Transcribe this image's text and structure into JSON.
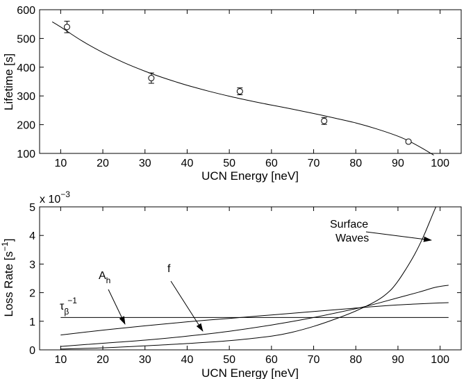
{
  "chart_data": [
    {
      "type": "scatter",
      "xlabel": "UCN Energy [neV]",
      "ylabel": "Lifetime [s]",
      "xlim": [
        5,
        105
      ],
      "ylim": [
        100,
        600
      ],
      "xticks": [
        10,
        20,
        30,
        40,
        50,
        60,
        70,
        80,
        90,
        100
      ],
      "yticks": [
        100,
        200,
        300,
        400,
        500,
        600
      ],
      "points": [
        {
          "x": 11.5,
          "y": 540,
          "err": 20
        },
        {
          "x": 31.5,
          "y": 362,
          "err": 18
        },
        {
          "x": 52.5,
          "y": 316,
          "err": 12
        },
        {
          "x": 72.5,
          "y": 213,
          "err": 12
        },
        {
          "x": 92.5,
          "y": 141,
          "err": 5
        }
      ],
      "fit": {
        "name": "fit",
        "x": [
          8,
          10,
          15,
          20,
          25,
          30,
          35,
          40,
          45,
          50,
          55,
          60,
          65,
          70,
          75,
          80,
          85,
          90,
          93,
          96,
          98.5
        ],
        "y": [
          558,
          540,
          492,
          451,
          416,
          386,
          360,
          337,
          317,
          299,
          283,
          268,
          254,
          239,
          223,
          206,
          185,
          160,
          140,
          116,
          94
        ]
      }
    },
    {
      "type": "line",
      "xlabel": "UCN Energy [neV]",
      "ylabel": "Loss Rate [s",
      "ylabel_sup": "−1",
      "ylabel_end": "]",
      "exponent_label": "x 10",
      "exponent_sup": "−3",
      "xlim": [
        5,
        105
      ],
      "ylim": [
        0,
        5
      ],
      "xticks": [
        10,
        20,
        30,
        40,
        50,
        60,
        70,
        80,
        90,
        100
      ],
      "yticks": [
        0,
        1,
        2,
        3,
        4,
        5
      ],
      "series": [
        {
          "name": "tau_beta",
          "x": [
            10,
            102
          ],
          "y": [
            1.13,
            1.13
          ]
        },
        {
          "name": "A_h",
          "x": [
            10,
            20,
            30,
            40,
            50,
            60,
            70,
            80,
            85,
            90,
            95,
            100,
            102
          ],
          "y": [
            0.52,
            0.69,
            0.84,
            0.98,
            1.1,
            1.22,
            1.34,
            1.46,
            1.52,
            1.57,
            1.61,
            1.64,
            1.65
          ]
        },
        {
          "name": "f",
          "x": [
            10,
            20,
            30,
            40,
            50,
            60,
            70,
            80,
            85,
            90,
            95,
            99,
            102
          ],
          "y": [
            0.12,
            0.23,
            0.34,
            0.48,
            0.65,
            0.87,
            1.13,
            1.44,
            1.62,
            1.82,
            2.02,
            2.19,
            2.26
          ]
        },
        {
          "name": "Surface Waves",
          "x": [
            10,
            20,
            30,
            40,
            50,
            60,
            65,
            70,
            75,
            80,
            85,
            88,
            90,
            92,
            94,
            96,
            98,
            99
          ],
          "y": [
            0.03,
            0.07,
            0.14,
            0.22,
            0.32,
            0.48,
            0.62,
            0.82,
            1.07,
            1.36,
            1.72,
            2.05,
            2.4,
            2.85,
            3.35,
            3.95,
            4.65,
            5.0
          ]
        }
      ],
      "annotations": [
        {
          "label": "Surface",
          "label2": "Waves",
          "target": "Surface Waves"
        },
        {
          "label": "A",
          "sub": "h",
          "target": "A_h"
        },
        {
          "label": "f",
          "target": "f"
        },
        {
          "label": "τ",
          "sub": "β",
          "sup": "−1",
          "target": "tau_beta"
        }
      ]
    }
  ]
}
